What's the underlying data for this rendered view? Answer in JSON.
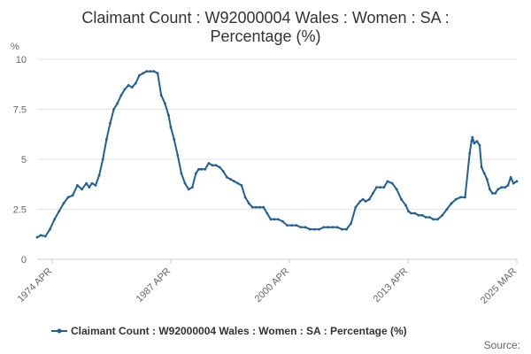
{
  "chart_data": {
    "type": "line",
    "title_lines": [
      "Claimant Count : W92000004 Wales : Women : SA :",
      "Percentage (%)"
    ],
    "ylabel": "%",
    "ylim": [
      0,
      10
    ],
    "yticks": [
      "0",
      "2.5",
      "5",
      "7.5",
      "10"
    ],
    "xtick_labels": [
      "1974 APR",
      "1987 APR",
      "2000 APR",
      "2013 APR",
      "2025 MAR"
    ],
    "xtick_years": [
      1974.25,
      1987.25,
      2000.25,
      2013.25,
      2025.17
    ],
    "xlim": [
      1972.6,
      2025.17
    ],
    "grid": true,
    "legend_position": "bottom",
    "source_label": "Source:",
    "series": [
      {
        "name": "Claimant Count : W92000004 Wales : Women : SA : Percentage (%)",
        "color": "#206095",
        "x": [
          1972.6,
          1973.0,
          1973.5,
          1974.0,
          1974.5,
          1975.0,
          1975.5,
          1976.0,
          1976.5,
          1977.0,
          1977.5,
          1978.0,
          1978.3,
          1978.6,
          1979.0,
          1979.4,
          1979.8,
          1980.2,
          1980.6,
          1981.0,
          1981.4,
          1981.8,
          1982.2,
          1982.6,
          1983.0,
          1983.4,
          1983.8,
          1984.2,
          1984.6,
          1985.0,
          1985.4,
          1985.8,
          1986.2,
          1986.6,
          1987.0,
          1987.25,
          1987.6,
          1988.0,
          1988.4,
          1988.8,
          1989.2,
          1989.6,
          1990.0,
          1990.3,
          1990.6,
          1991.0,
          1991.4,
          1991.8,
          1992.2,
          1992.6,
          1993.0,
          1993.4,
          1993.8,
          1994.2,
          1994.6,
          1995.0,
          1995.4,
          1995.8,
          1996.2,
          1996.6,
          1997.0,
          1997.4,
          1997.8,
          1998.2,
          1998.6,
          1999.0,
          1999.5,
          2000.0,
          2000.5,
          2001.0,
          2001.5,
          2002.0,
          2002.5,
          2003.0,
          2003.5,
          2004.0,
          2004.5,
          2005.0,
          2005.5,
          2006.0,
          2006.5,
          2007.0,
          2007.5,
          2008.0,
          2008.3,
          2008.6,
          2009.0,
          2009.4,
          2009.8,
          2010.2,
          2010.6,
          2011.0,
          2011.5,
          2012.0,
          2012.5,
          2013.0,
          2013.3,
          2013.6,
          2014.0,
          2014.4,
          2014.8,
          2015.2,
          2015.6,
          2016.0,
          2016.5,
          2017.0,
          2017.5,
          2018.0,
          2018.5,
          2019.0,
          2019.5,
          2020.0,
          2020.2,
          2020.3,
          2020.5,
          2020.8,
          2021.1,
          2021.3,
          2021.6,
          2021.9,
          2022.2,
          2022.5,
          2022.8,
          2023.1,
          2023.5,
          2023.9,
          2024.2,
          2024.5,
          2024.8,
          2025.17
        ],
        "y": [
          1.1,
          1.2,
          1.15,
          1.5,
          2.0,
          2.4,
          2.8,
          3.1,
          3.2,
          3.7,
          3.5,
          3.8,
          3.6,
          3.8,
          3.7,
          4.2,
          5.0,
          6.0,
          6.8,
          7.5,
          7.8,
          8.2,
          8.5,
          8.7,
          8.6,
          8.8,
          9.2,
          9.3,
          9.4,
          9.4,
          9.4,
          9.3,
          8.2,
          7.8,
          7.2,
          6.6,
          6.0,
          5.2,
          4.3,
          3.8,
          3.5,
          3.6,
          4.3,
          4.5,
          4.5,
          4.5,
          4.8,
          4.7,
          4.7,
          4.6,
          4.4,
          4.1,
          4.0,
          3.9,
          3.8,
          3.7,
          3.1,
          2.8,
          2.6,
          2.6,
          2.6,
          2.6,
          2.3,
          2.0,
          2.0,
          2.0,
          1.9,
          1.7,
          1.7,
          1.7,
          1.6,
          1.6,
          1.5,
          1.5,
          1.5,
          1.6,
          1.6,
          1.6,
          1.6,
          1.5,
          1.5,
          1.8,
          2.6,
          2.9,
          3.0,
          2.9,
          3.0,
          3.3,
          3.6,
          3.6,
          3.6,
          3.9,
          3.8,
          3.5,
          3.0,
          2.7,
          2.4,
          2.3,
          2.3,
          2.2,
          2.2,
          2.1,
          2.1,
          2.0,
          2.0,
          2.2,
          2.5,
          2.8,
          3.0,
          3.1,
          3.1,
          5.3,
          5.9,
          6.1,
          5.8,
          5.9,
          5.7,
          4.6,
          4.3,
          4.0,
          3.5,
          3.3,
          3.3,
          3.5,
          3.6,
          3.6,
          3.7,
          4.1,
          3.8,
          3.9
        ]
      }
    ]
  }
}
